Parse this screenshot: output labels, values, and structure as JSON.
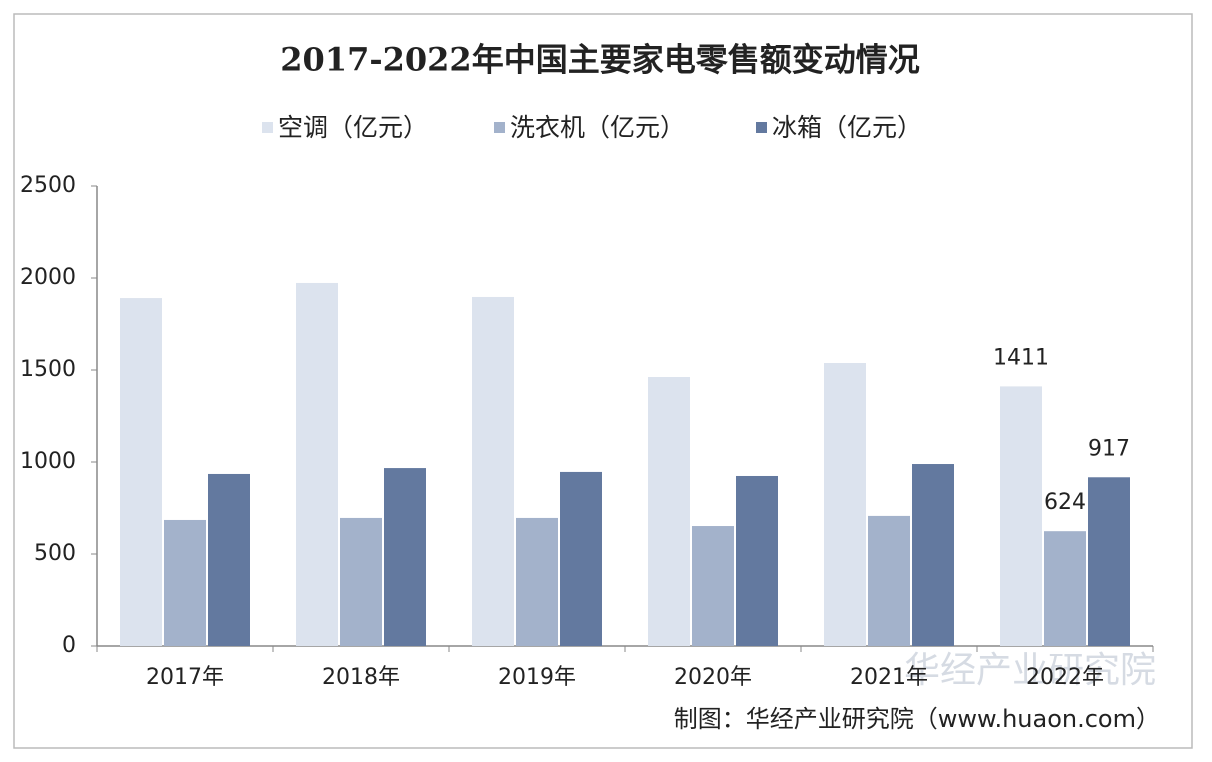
{
  "chart_data": {
    "type": "bar",
    "title": "2017-2022年中国主要家电零售额变动情况",
    "categories": [
      "2017年",
      "2018年",
      "2019年",
      "2020年",
      "2021年",
      "2022年"
    ],
    "series": [
      {
        "name": "空调（亿元）",
        "color": "#dce3ee",
        "values": [
          1891,
          1973,
          1897,
          1462,
          1538,
          1411
        ],
        "value_labels": [
          null,
          null,
          null,
          null,
          null,
          "1411"
        ]
      },
      {
        "name": "洗衣机（亿元）",
        "color": "#a3b2cb",
        "values": [
          685,
          696,
          696,
          652,
          707,
          624
        ],
        "value_labels": [
          null,
          null,
          null,
          null,
          null,
          "624"
        ]
      },
      {
        "name": "冰箱（亿元）",
        "color": "#63799f",
        "values": [
          935,
          967,
          946,
          924,
          989,
          917
        ],
        "value_labels": [
          null,
          null,
          null,
          null,
          null,
          "917"
        ]
      }
    ],
    "ylim": [
      0,
      2500
    ],
    "yticks": [
      0,
      500,
      1000,
      1500,
      2000,
      2500
    ],
    "legend": "top",
    "watermark": "华经产业研究院",
    "source": "制图：华经产业研究院（www.huaon.com）"
  }
}
